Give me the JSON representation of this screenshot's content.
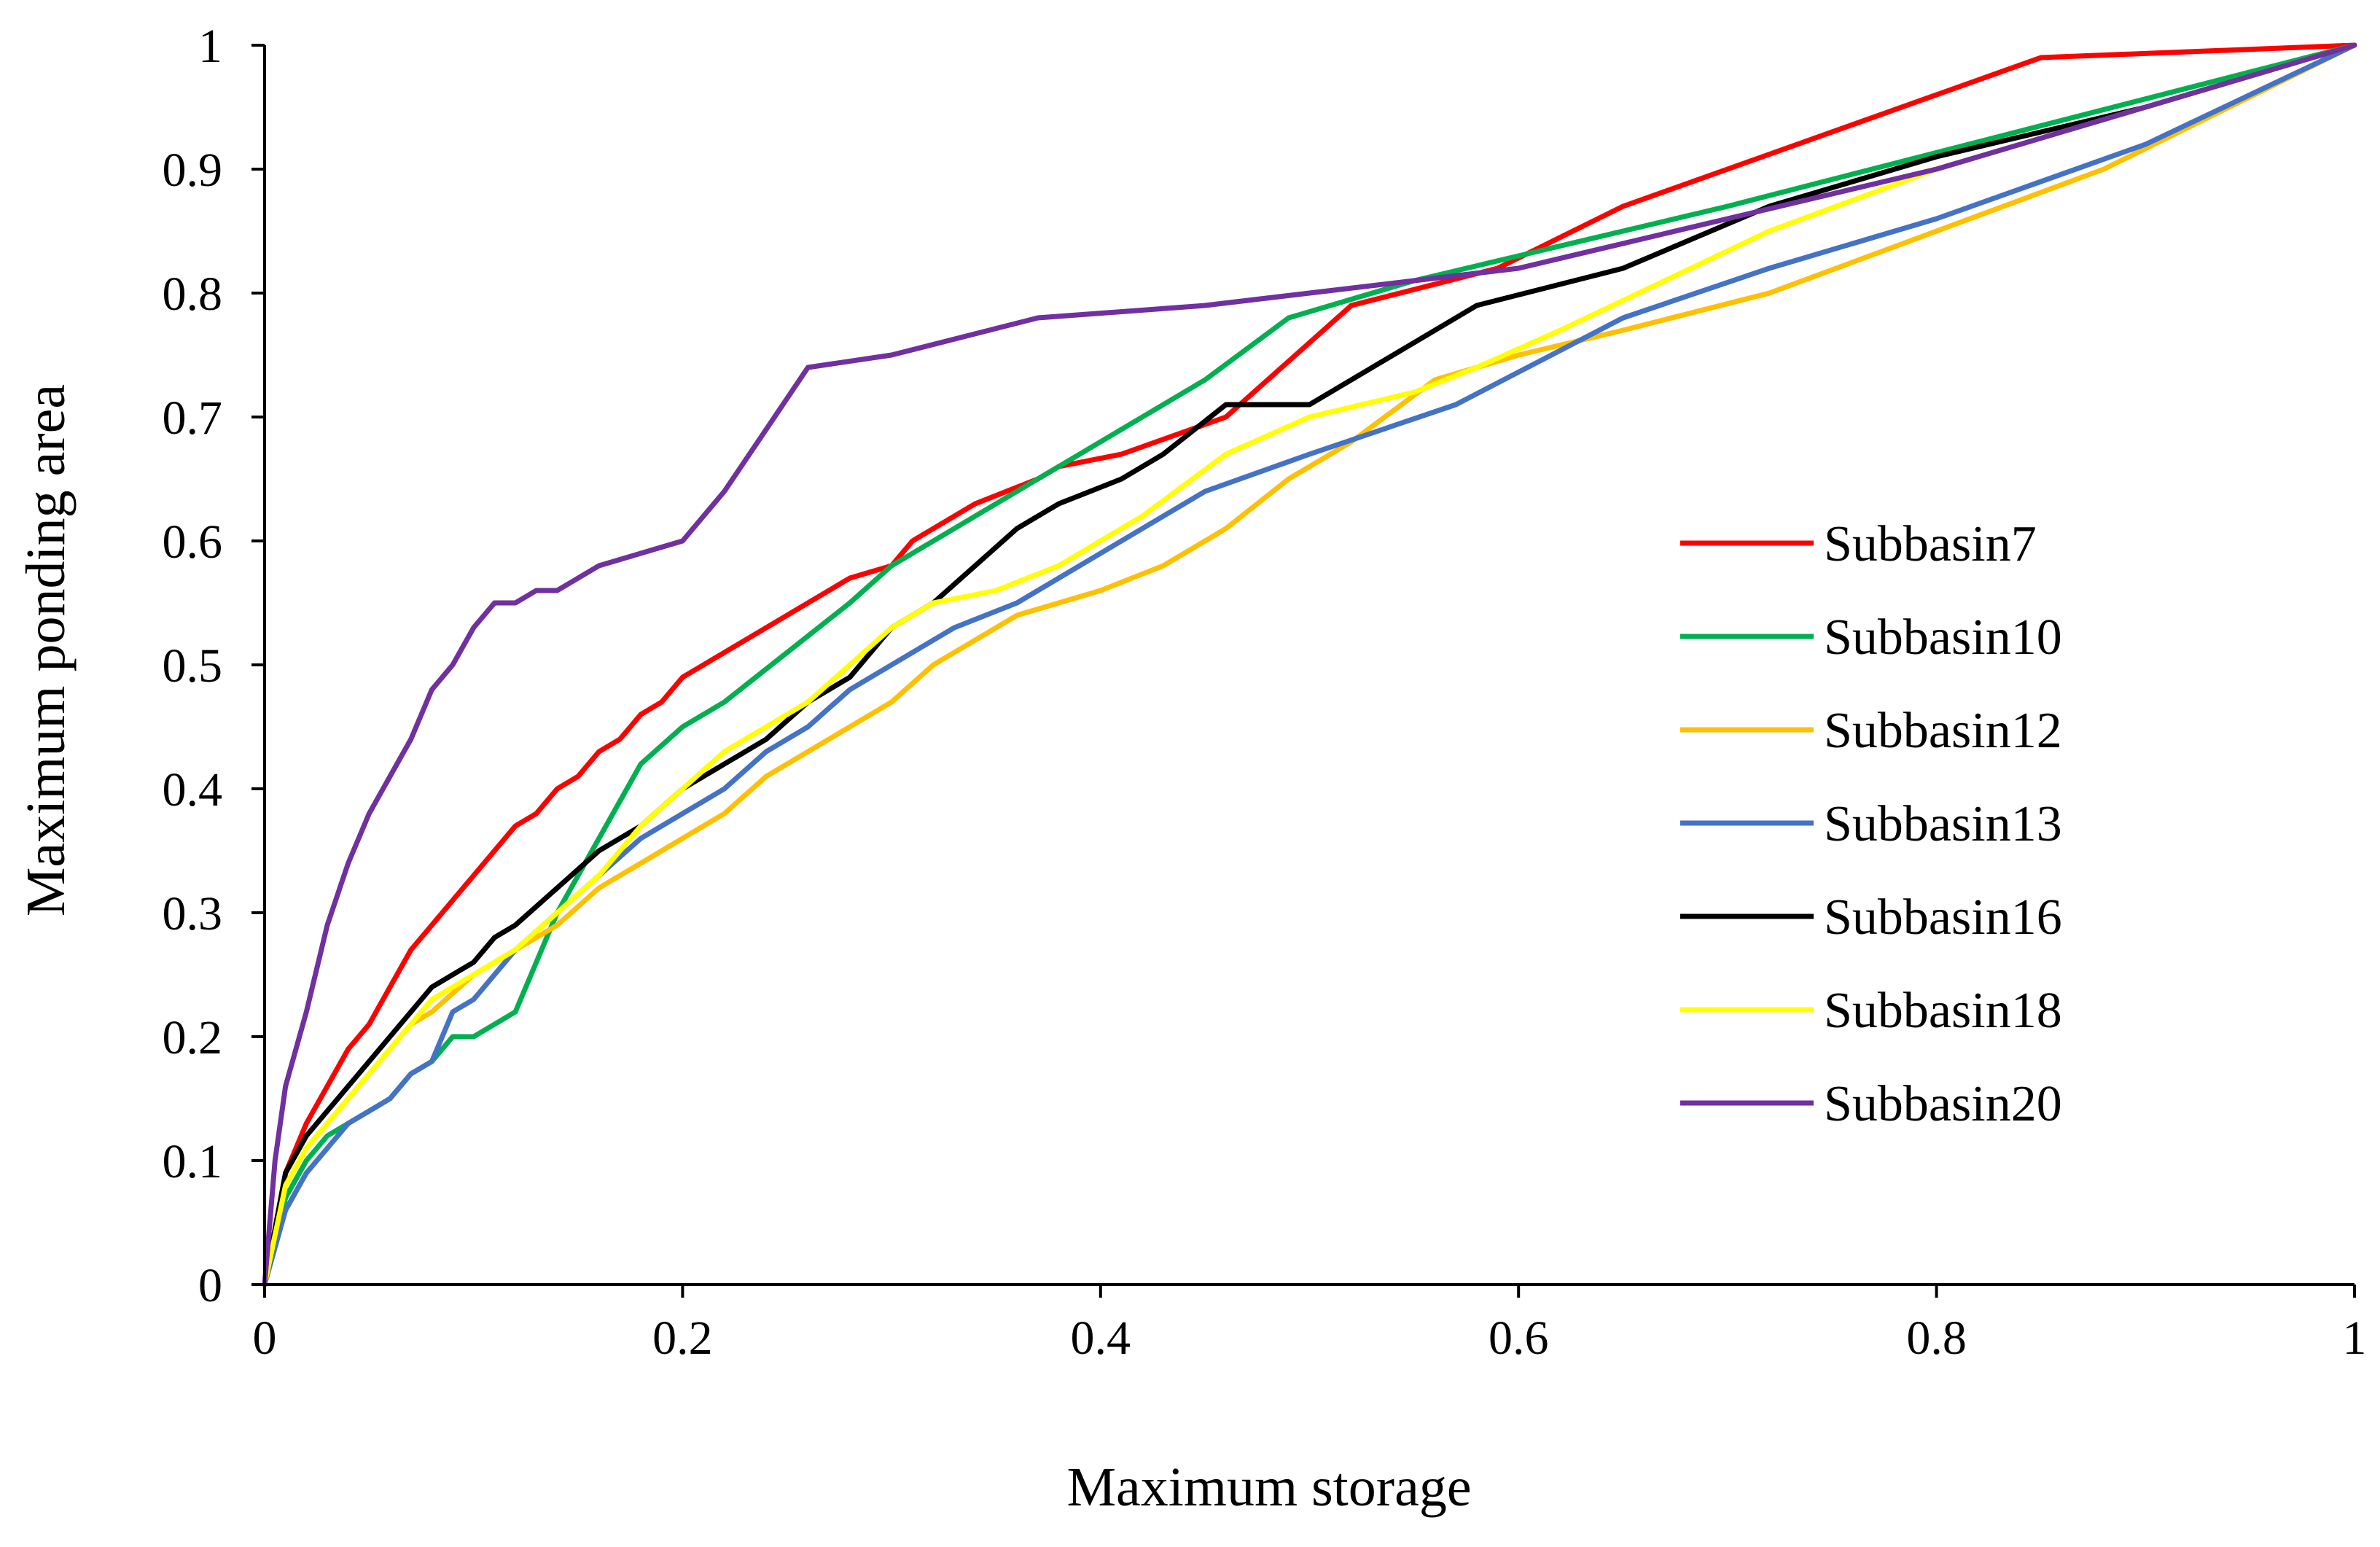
{
  "chart_data": {
    "type": "line",
    "title": "",
    "xlabel": "Maximum storage",
    "ylabel": "Maximum ponding area",
    "xlim": [
      0,
      1
    ],
    "ylim": [
      0,
      1
    ],
    "xticks": [
      "0",
      "0.2",
      "0.4",
      "0.6",
      "0.8",
      "1"
    ],
    "yticks": [
      "0",
      "0.1",
      "0.2",
      "0.3",
      "0.4",
      "0.5",
      "0.6",
      "0.7",
      "0.8",
      "0.9",
      "1"
    ],
    "grid": false,
    "legend_position": "right",
    "series": [
      {
        "name": "Subbasin7",
        "color": "#ff0000",
        "x": [
          0,
          0.01,
          0.02,
          0.03,
          0.04,
          0.05,
          0.06,
          0.07,
          0.08,
          0.09,
          0.1,
          0.11,
          0.12,
          0.13,
          0.14,
          0.15,
          0.16,
          0.17,
          0.18,
          0.19,
          0.2,
          0.22,
          0.24,
          0.26,
          0.28,
          0.3,
          0.31,
          0.34,
          0.37,
          0.38,
          0.41,
          0.46,
          0.52,
          0.59,
          0.65,
          0.7,
          0.85,
          1.0
        ],
        "y": [
          0,
          0.09,
          0.13,
          0.16,
          0.19,
          0.21,
          0.24,
          0.27,
          0.29,
          0.31,
          0.33,
          0.35,
          0.37,
          0.38,
          0.4,
          0.41,
          0.43,
          0.44,
          0.46,
          0.47,
          0.49,
          0.51,
          0.53,
          0.55,
          0.57,
          0.58,
          0.6,
          0.63,
          0.65,
          0.66,
          0.67,
          0.7,
          0.79,
          0.82,
          0.87,
          0.9,
          0.99,
          1.0
        ]
      },
      {
        "name": "Subbasin10",
        "color": "#00b050",
        "x": [
          0,
          0.01,
          0.02,
          0.03,
          0.04,
          0.05,
          0.06,
          0.07,
          0.08,
          0.09,
          0.1,
          0.11,
          0.12,
          0.13,
          0.14,
          0.15,
          0.16,
          0.17,
          0.18,
          0.2,
          0.22,
          0.25,
          0.28,
          0.3,
          0.35,
          0.4,
          0.45,
          0.49,
          0.55,
          0.6,
          0.7,
          1.0
        ],
        "y": [
          0,
          0.07,
          0.1,
          0.12,
          0.13,
          0.14,
          0.15,
          0.17,
          0.18,
          0.2,
          0.2,
          0.21,
          0.22,
          0.26,
          0.3,
          0.33,
          0.36,
          0.39,
          0.42,
          0.45,
          0.47,
          0.51,
          0.55,
          0.58,
          0.63,
          0.68,
          0.73,
          0.78,
          0.81,
          0.83,
          0.87,
          1.0
        ]
      },
      {
        "name": "Subbasin12",
        "color": "#ffc000",
        "x": [
          0,
          0.01,
          0.02,
          0.03,
          0.04,
          0.05,
          0.06,
          0.07,
          0.08,
          0.1,
          0.12,
          0.14,
          0.16,
          0.18,
          0.2,
          0.22,
          0.24,
          0.26,
          0.28,
          0.3,
          0.32,
          0.34,
          0.36,
          0.38,
          0.4,
          0.43,
          0.46,
          0.49,
          0.52,
          0.56,
          0.6,
          0.65,
          0.72,
          0.8,
          0.88,
          1.0
        ],
        "y": [
          0,
          0.08,
          0.11,
          0.13,
          0.15,
          0.17,
          0.19,
          0.21,
          0.22,
          0.25,
          0.27,
          0.29,
          0.32,
          0.34,
          0.36,
          0.38,
          0.41,
          0.43,
          0.45,
          0.47,
          0.5,
          0.52,
          0.54,
          0.55,
          0.56,
          0.58,
          0.61,
          0.65,
          0.68,
          0.73,
          0.75,
          0.77,
          0.8,
          0.85,
          0.9,
          1.0
        ]
      },
      {
        "name": "Subbasin13",
        "color": "#4472c4",
        "x": [
          0,
          0.01,
          0.02,
          0.03,
          0.04,
          0.05,
          0.06,
          0.07,
          0.08,
          0.09,
          0.1,
          0.12,
          0.14,
          0.16,
          0.18,
          0.2,
          0.22,
          0.24,
          0.26,
          0.28,
          0.3,
          0.33,
          0.36,
          0.4,
          0.45,
          0.5,
          0.57,
          0.65,
          0.72,
          0.8,
          0.9,
          1.0
        ],
        "y": [
          0,
          0.06,
          0.09,
          0.11,
          0.13,
          0.14,
          0.15,
          0.17,
          0.18,
          0.22,
          0.23,
          0.27,
          0.3,
          0.33,
          0.36,
          0.38,
          0.4,
          0.43,
          0.45,
          0.48,
          0.5,
          0.53,
          0.55,
          0.59,
          0.64,
          0.67,
          0.71,
          0.78,
          0.82,
          0.86,
          0.92,
          1.0
        ]
      },
      {
        "name": "Subbasin16",
        "color": "#000000",
        "x": [
          0,
          0.01,
          0.02,
          0.03,
          0.04,
          0.05,
          0.06,
          0.07,
          0.08,
          0.09,
          0.1,
          0.11,
          0.12,
          0.14,
          0.16,
          0.18,
          0.2,
          0.22,
          0.24,
          0.26,
          0.28,
          0.3,
          0.32,
          0.34,
          0.36,
          0.38,
          0.41,
          0.43,
          0.46,
          0.5,
          0.53,
          0.58,
          0.65,
          0.72,
          0.8,
          0.9,
          1.0
        ],
        "y": [
          0,
          0.09,
          0.12,
          0.14,
          0.16,
          0.18,
          0.2,
          0.22,
          0.24,
          0.25,
          0.26,
          0.28,
          0.29,
          0.32,
          0.35,
          0.37,
          0.4,
          0.42,
          0.44,
          0.47,
          0.49,
          0.53,
          0.55,
          0.58,
          0.61,
          0.63,
          0.65,
          0.67,
          0.71,
          0.71,
          0.74,
          0.79,
          0.82,
          0.87,
          0.91,
          0.95,
          1.0
        ]
      },
      {
        "name": "Subbasin18",
        "color": "#ffff00",
        "x": [
          0,
          0.01,
          0.02,
          0.03,
          0.04,
          0.05,
          0.06,
          0.07,
          0.08,
          0.1,
          0.12,
          0.14,
          0.16,
          0.18,
          0.2,
          0.22,
          0.24,
          0.26,
          0.28,
          0.3,
          0.32,
          0.35,
          0.38,
          0.42,
          0.46,
          0.5,
          0.55,
          0.58,
          0.62,
          0.67,
          0.72,
          0.8,
          0.9,
          1.0
        ],
        "y": [
          0,
          0.08,
          0.11,
          0.13,
          0.15,
          0.17,
          0.19,
          0.21,
          0.23,
          0.25,
          0.27,
          0.3,
          0.33,
          0.37,
          0.4,
          0.43,
          0.45,
          0.47,
          0.5,
          0.53,
          0.55,
          0.56,
          0.58,
          0.62,
          0.67,
          0.7,
          0.72,
          0.74,
          0.77,
          0.81,
          0.85,
          0.9,
          0.95,
          1.0
        ]
      },
      {
        "name": "Subbasin20",
        "color": "#7030a0",
        "x": [
          0,
          0.005,
          0.01,
          0.02,
          0.03,
          0.04,
          0.05,
          0.06,
          0.07,
          0.08,
          0.09,
          0.1,
          0.11,
          0.12,
          0.13,
          0.14,
          0.15,
          0.16,
          0.18,
          0.2,
          0.22,
          0.24,
          0.26,
          0.3,
          0.37,
          0.45,
          0.55,
          0.6,
          0.7,
          0.8,
          0.9,
          1.0
        ],
        "y": [
          0,
          0.1,
          0.16,
          0.22,
          0.29,
          0.34,
          0.38,
          0.41,
          0.44,
          0.48,
          0.5,
          0.53,
          0.55,
          0.55,
          0.56,
          0.56,
          0.57,
          0.58,
          0.59,
          0.6,
          0.64,
          0.69,
          0.74,
          0.75,
          0.78,
          0.79,
          0.81,
          0.82,
          0.86,
          0.9,
          0.95,
          1.0
        ]
      }
    ]
  }
}
